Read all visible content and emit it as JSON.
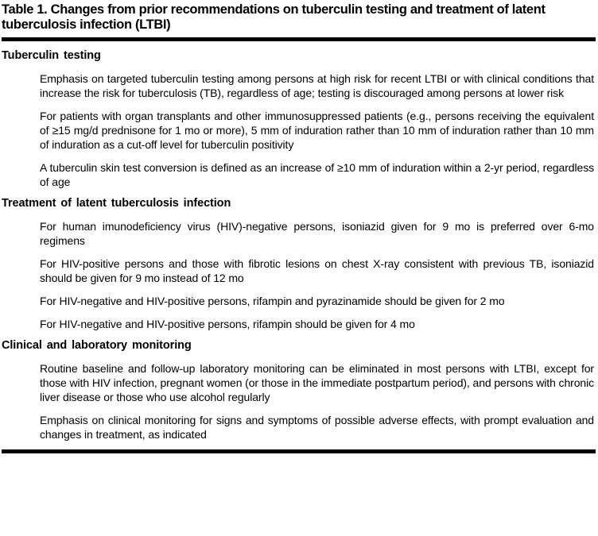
{
  "table": {
    "title": "Table 1. Changes from prior recommendations on tuberculin testing and treatment of latent tuberculosis infection (LTBI)",
    "sections": [
      {
        "heading": "Tuberculin testing",
        "items": [
          "Emphasis on targeted tuberculin testing among persons at high risk for recent LTBI or with clinical conditions that increase the risk for tuberculosis (TB), regardless of age; testing is discouraged among persons at lower risk",
          "For patients with organ transplants and other immunosuppressed patients (e.g., persons receiving the equivalent of ≥15 mg/d prednisone for 1 mo or more), 5 mm of induration rather than 10 mm of induration rather than 10 mm of induration as a cut-off level for tuberculin positivity",
          "A tuberculin skin test conversion is defined as an increase of ≥10 mm of induration within a 2-yr period, regardless of age"
        ]
      },
      {
        "heading": "Treatment of latent tuberculosis infection",
        "items": [
          "For human imunodeficiency virus (HIV)-negative persons, isoniazid given for 9 mo is preferred over 6-mo regimens",
          "For HIV-positive persons and those with fibrotic lesions on chest X-ray consistent with previous TB, isoniazid should be given for 9 mo instead of 12 mo",
          "For HIV-negative and HIV-positive persons, rifampin and pyrazinamide should be given for 2 mo",
          "For HIV-negative and HIV-positive persons, rifampin should be given for 4 mo"
        ]
      },
      {
        "heading": "Clinical and laboratory monitoring",
        "items": [
          "Routine baseline and follow-up laboratory monitoring can be eliminated in most persons with LTBI, except for those with HIV infection,  pregnant women (or those in the immediate postpartum period), and persons with chronic liver disease or those who use alcohol regularly",
          "Emphasis on clinical monitoring for signs and symptoms of possible adverse effects, with prompt evaluation and changes in treatment, as indicated"
        ]
      }
    ]
  },
  "colors": {
    "text": "#000000",
    "background": "#ffffff",
    "rule": "#000000"
  }
}
